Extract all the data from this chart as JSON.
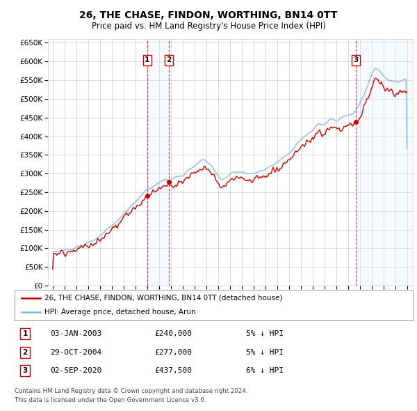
{
  "title": "26, THE CHASE, FINDON, WORTHING, BN14 0TT",
  "subtitle": "Price paid vs. HM Land Registry's House Price Index (HPI)",
  "legend_line1": "26, THE CHASE, FINDON, WORTHING, BN14 0TT (detached house)",
  "legend_line2": "HPI: Average price, detached house, Arun",
  "footer1": "Contains HM Land Registry data © Crown copyright and database right 2024.",
  "footer2": "This data is licensed under the Open Government Licence v3.0.",
  "transactions": [
    {
      "num": 1,
      "date": "03-JAN-2003",
      "price": 240000,
      "pct": "5% ↓ HPI",
      "year_x": 2003.01
    },
    {
      "num": 2,
      "date": "29-OCT-2004",
      "price": 277000,
      "pct": "5% ↓ HPI",
      "year_x": 2004.83
    },
    {
      "num": 3,
      "date": "02-SEP-2020",
      "price": 437500,
      "pct": "6% ↓ HPI",
      "year_x": 2020.67
    }
  ],
  "hpi_color": "#7ab8d9",
  "price_color": "#cc0000",
  "background_color": "#ffffff",
  "grid_color": "#cccccc",
  "shade_color": "#ddeeff",
  "ylim": [
    0,
    660000
  ],
  "ytick_max": 650000,
  "xlim_start": 1994.6,
  "xlim_end": 2025.5,
  "yticks": [
    0,
    50000,
    100000,
    150000,
    200000,
    250000,
    300000,
    350000,
    400000,
    450000,
    500000,
    550000,
    600000,
    650000
  ],
  "xticks": [
    1995,
    1996,
    1997,
    1998,
    1999,
    2000,
    2001,
    2002,
    2003,
    2004,
    2005,
    2006,
    2007,
    2008,
    2009,
    2010,
    2011,
    2012,
    2013,
    2014,
    2015,
    2016,
    2017,
    2018,
    2019,
    2020,
    2021,
    2022,
    2023,
    2024,
    2025
  ]
}
